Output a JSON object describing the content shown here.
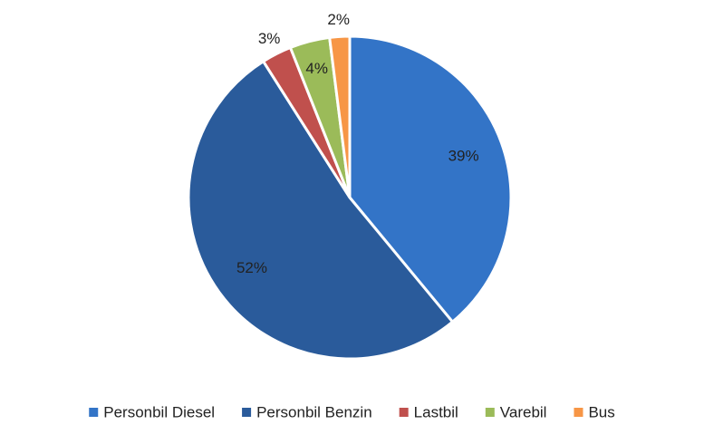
{
  "chart_data": {
    "type": "pie",
    "categories": [
      "Personbil Diesel",
      "Personbil Benzin",
      "Lastbil",
      "Varebil",
      "Bus"
    ],
    "values": [
      39,
      52,
      3,
      4,
      2
    ],
    "value_labels": [
      "39%",
      "52%",
      "3%",
      "4%",
      "2%"
    ],
    "colors": [
      "#3374c7",
      "#2a5b9b",
      "#c0504d",
      "#9bbb59",
      "#f79646"
    ],
    "legend": "bottom"
  }
}
